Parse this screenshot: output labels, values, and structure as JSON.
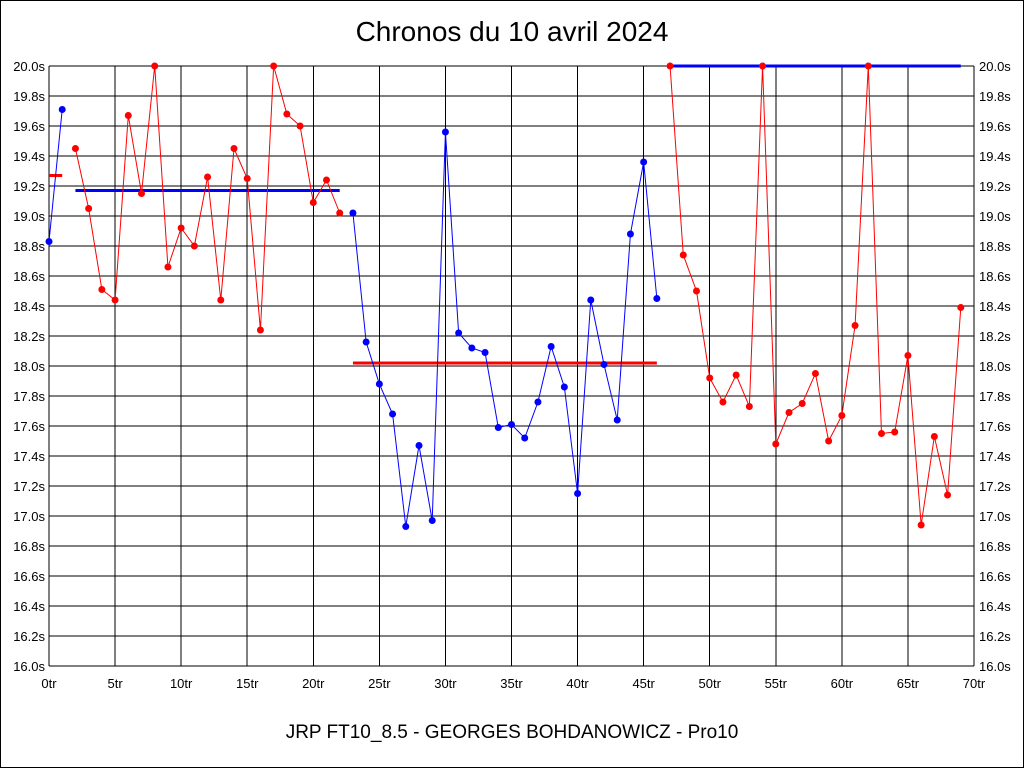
{
  "chart_data": {
    "type": "line",
    "title": "Chronos du 10 avril 2024",
    "footer": "JRP FT10_8.5 - GEORGES BOHDANOWICZ - Pro10",
    "xlim": [
      0,
      70
    ],
    "ylim": [
      16.0,
      20.0
    ],
    "x_ticks": [
      {
        "value": 0,
        "label": "0tr"
      },
      {
        "value": 5,
        "label": "5tr"
      },
      {
        "value": 10,
        "label": "10tr"
      },
      {
        "value": 15,
        "label": "15tr"
      },
      {
        "value": 20,
        "label": "20tr"
      },
      {
        "value": 25,
        "label": "25tr"
      },
      {
        "value": 30,
        "label": "30tr"
      },
      {
        "value": 35,
        "label": "35tr"
      },
      {
        "value": 40,
        "label": "40tr"
      },
      {
        "value": 45,
        "label": "45tr"
      },
      {
        "value": 50,
        "label": "50tr"
      },
      {
        "value": 55,
        "label": "55tr"
      },
      {
        "value": 60,
        "label": "60tr"
      },
      {
        "value": 65,
        "label": "65tr"
      },
      {
        "value": 70,
        "label": "70tr"
      }
    ],
    "y_ticks": [
      {
        "value": 16.0,
        "label": "16.0s"
      },
      {
        "value": 16.2,
        "label": "16.2s"
      },
      {
        "value": 16.4,
        "label": "16.4s"
      },
      {
        "value": 16.6,
        "label": "16.6s"
      },
      {
        "value": 16.8,
        "label": "16.8s"
      },
      {
        "value": 17.0,
        "label": "17.0s"
      },
      {
        "value": 17.2,
        "label": "17.2s"
      },
      {
        "value": 17.4,
        "label": "17.4s"
      },
      {
        "value": 17.6,
        "label": "17.6s"
      },
      {
        "value": 17.8,
        "label": "17.8s"
      },
      {
        "value": 18.0,
        "label": "18.0s"
      },
      {
        "value": 18.2,
        "label": "18.2s"
      },
      {
        "value": 18.4,
        "label": "18.4s"
      },
      {
        "value": 18.6,
        "label": "18.6s"
      },
      {
        "value": 18.8,
        "label": "18.8s"
      },
      {
        "value": 19.0,
        "label": "19.0s"
      },
      {
        "value": 19.2,
        "label": "19.2s"
      },
      {
        "value": 19.4,
        "label": "19.4s"
      },
      {
        "value": 19.6,
        "label": "19.6s"
      },
      {
        "value": 19.8,
        "label": "19.8s"
      },
      {
        "value": 20.0,
        "label": "20.0s"
      }
    ],
    "grid": true,
    "series": [
      {
        "color": "#0000ff",
        "x": [
          0,
          1
        ],
        "y": [
          18.83,
          19.71
        ]
      },
      {
        "color": "#ff0000",
        "x": [
          2,
          3,
          4,
          5,
          6,
          7,
          8,
          9,
          10,
          11,
          12,
          13,
          14,
          15,
          16,
          17,
          18,
          19,
          20,
          21,
          22
        ],
        "y": [
          19.45,
          19.05,
          18.51,
          18.44,
          19.67,
          19.15,
          20.0,
          18.66,
          18.92,
          18.8,
          19.26,
          18.44,
          19.45,
          19.25,
          18.24,
          20.0,
          19.68,
          19.6,
          19.09,
          19.24,
          19.02
        ]
      },
      {
        "color": "#0000ff",
        "x": [
          23,
          24,
          25,
          26,
          27,
          28,
          29,
          30,
          31,
          32,
          33,
          34,
          35,
          36,
          37,
          38,
          39,
          40,
          41,
          42,
          43,
          44,
          45,
          46
        ],
        "y": [
          19.02,
          18.16,
          17.88,
          17.68,
          16.93,
          17.47,
          16.97,
          19.56,
          18.22,
          18.12,
          18.09,
          17.59,
          17.61,
          17.52,
          17.76,
          18.13,
          17.86,
          17.15,
          18.44,
          18.01,
          17.64,
          18.88,
          19.36,
          18.45
        ]
      },
      {
        "color": "#ff0000",
        "x": [
          47,
          48,
          49,
          50,
          51,
          52,
          53,
          54,
          55,
          56,
          57,
          58,
          59,
          60,
          61,
          62,
          63,
          64,
          65,
          66,
          67,
          68,
          69
        ],
        "y": [
          20.0,
          18.74,
          18.5,
          17.92,
          17.76,
          17.94,
          17.73,
          20.0,
          17.48,
          17.69,
          17.75,
          17.95,
          17.5,
          17.67,
          18.27,
          20.0,
          17.55,
          17.56,
          18.07,
          16.94,
          17.53,
          17.14,
          18.39
        ]
      }
    ],
    "average_lines": [
      {
        "color": "#ff0000",
        "x_start": 0,
        "x_end": 1,
        "y": 19.27
      },
      {
        "color": "#0000ff",
        "x_start": 2,
        "x_end": 22,
        "y": 19.17
      },
      {
        "color": "#ff0000",
        "x_start": 23,
        "x_end": 46,
        "y": 18.02
      },
      {
        "color": "#0000ff",
        "x_start": 47,
        "x_end": 69,
        "y": 20.0
      }
    ]
  }
}
